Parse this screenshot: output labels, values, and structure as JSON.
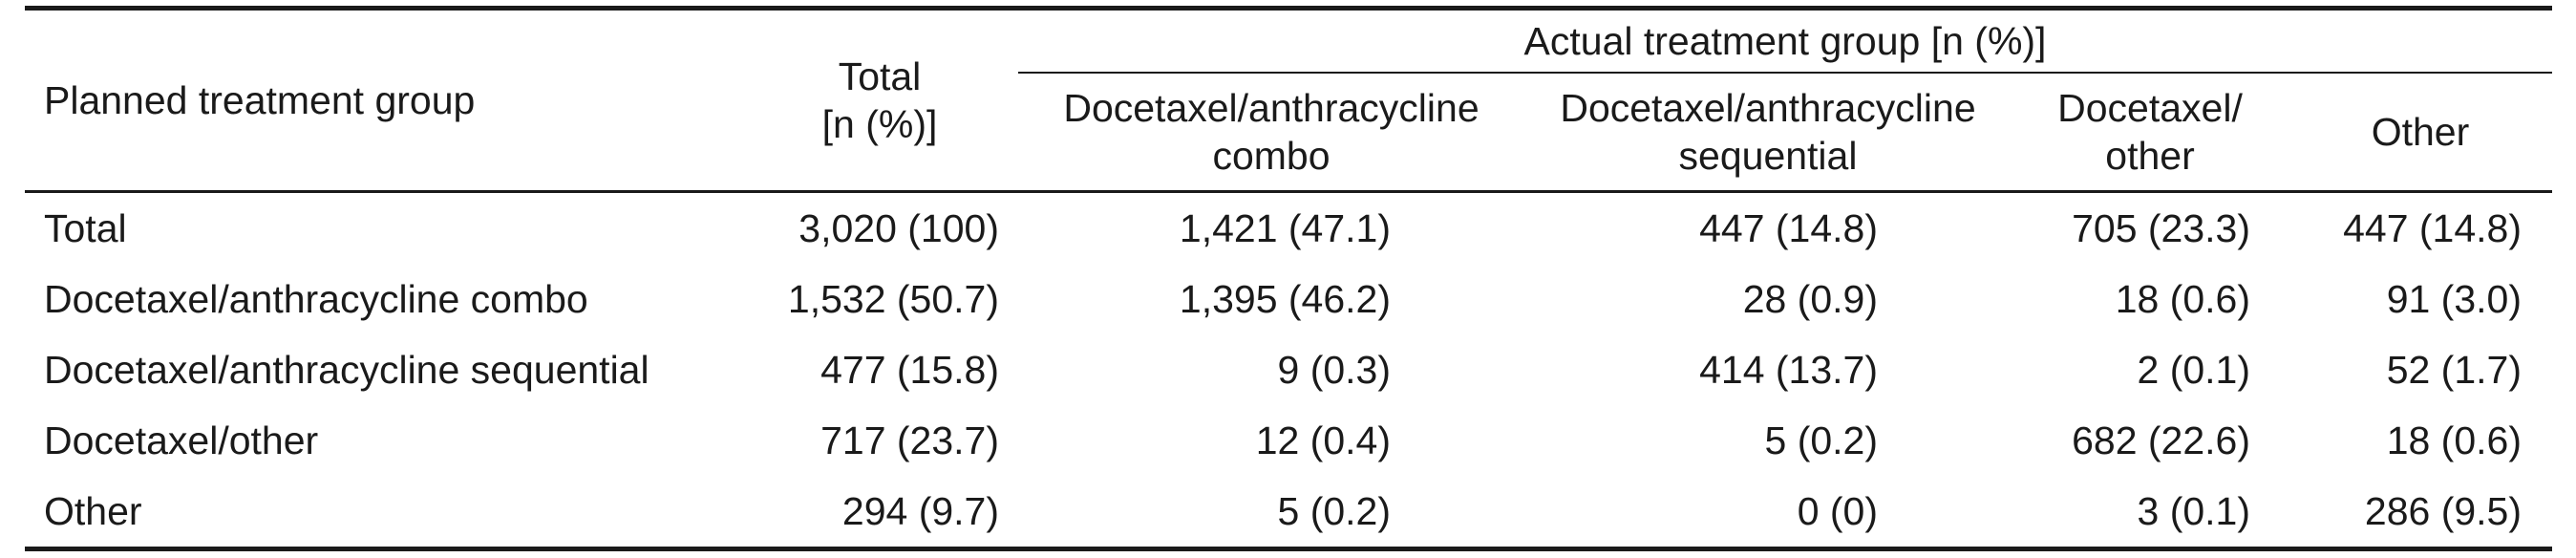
{
  "table": {
    "header": {
      "planned_label": "Planned treatment group",
      "total_label_line1": "Total",
      "total_label_line2": "[n (%)]",
      "group_label": "Actual treatment group [n (%)]",
      "subcolumns": [
        {
          "line1": "Docetaxel/anthracycline",
          "line2": "combo"
        },
        {
          "line1": "Docetaxel/anthracycline",
          "line2": "sequential"
        },
        {
          "line1": "Docetaxel/",
          "line2": "other"
        },
        {
          "line1": "Other",
          "line2": ""
        }
      ]
    },
    "rows": [
      {
        "label": "Total",
        "total": "3,020 (100)",
        "combo": "1,421 (47.1)",
        "sequential": "447 (14.8)",
        "doc_other": "705 (23.3)",
        "other": "447 (14.8)"
      },
      {
        "label": "Docetaxel/anthracycline combo",
        "total": "1,532 (50.7)",
        "combo": "1,395 (46.2)",
        "sequential": "28 (0.9)",
        "doc_other": "18 (0.6)",
        "other": "91 (3.0)"
      },
      {
        "label": "Docetaxel/anthracycline sequential",
        "total": "477 (15.8)",
        "combo": "9 (0.3)",
        "sequential": "414 (13.7)",
        "doc_other": "2 (0.1)",
        "other": "52 (1.7)"
      },
      {
        "label": "Docetaxel/other",
        "total": "717 (23.7)",
        "combo": "12 (0.4)",
        "sequential": "5 (0.2)",
        "doc_other": "682 (22.6)",
        "other": "18 (0.6)"
      },
      {
        "label": "Other",
        "total": "294 (9.7)",
        "combo": "5 (0.2)",
        "sequential": "0 (0)",
        "doc_other": "3 (0.1)",
        "other": "286 (9.5)"
      }
    ]
  }
}
